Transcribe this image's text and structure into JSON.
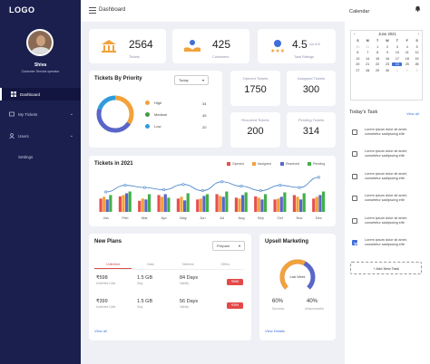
{
  "app": {
    "logo": "LOGO"
  },
  "user": {
    "name": "Shiva",
    "role": "Customer Service operator"
  },
  "nav": {
    "items": [
      {
        "label": "Dashboard",
        "icon": "dashboard-icon",
        "active": true
      },
      {
        "label": "My Tickets",
        "icon": "ticket-icon"
      },
      {
        "label": "Users",
        "icon": "user-icon"
      },
      {
        "label": "Settings",
        "icon": ""
      }
    ]
  },
  "header": {
    "title": "Dashboard"
  },
  "stats": [
    {
      "value": "2564",
      "label": "Tickets",
      "icon": "bank-icon"
    },
    {
      "value": "425",
      "label": "Customers",
      "icon": "hands-icon"
    },
    {
      "value": "4.5",
      "suffix": "out of 5",
      "label": "Total Ratings",
      "icon": "stars-icon"
    }
  ],
  "priority": {
    "title": "Tickets By Priority",
    "filter": "Today",
    "items": [
      {
        "label": "High",
        "value": 34,
        "color": "#f2a23a"
      },
      {
        "label": "Medium",
        "value": 45,
        "color": "#3f9b3f"
      },
      {
        "label": "Low",
        "value": 20,
        "color": "#2f9ddb"
      }
    ],
    "ring_color": "#5a66c8"
  },
  "ticket_counts": [
    {
      "label": "Opened Tickets",
      "value": "1750"
    },
    {
      "label": "Assigned Tickets",
      "value": "300"
    },
    {
      "label": "Resolved Tickets",
      "value": "200"
    },
    {
      "label": "Pending Tickets",
      "value": "314"
    }
  ],
  "chart_data": {
    "type": "bar",
    "title": "Tickets in 2021",
    "categories": [
      "Jan",
      "Feb",
      "Mar",
      "Apr",
      "May",
      "Jun",
      "Jul",
      "Aug",
      "Sep",
      "Oct",
      "Nov",
      "Dec"
    ],
    "series": [
      {
        "name": "Opened",
        "color": "#e84f4f",
        "values": [
          30,
          35,
          25,
          38,
          30,
          28,
          40,
          32,
          35,
          28,
          38,
          30
        ]
      },
      {
        "name": "Assigned",
        "color": "#f2a23a",
        "values": [
          34,
          38,
          30,
          34,
          34,
          30,
          36,
          30,
          32,
          30,
          34,
          34
        ]
      },
      {
        "name": "Resolved",
        "color": "#5a66c8",
        "values": [
          28,
          42,
          28,
          40,
          26,
          36,
          34,
          38,
          28,
          34,
          28,
          38
        ]
      },
      {
        "name": "Pending",
        "color": "#42b04a",
        "values": [
          38,
          46,
          40,
          32,
          42,
          40,
          46,
          44,
          40,
          44,
          42,
          46
        ]
      }
    ],
    "line": {
      "color": "#3f7fc8",
      "values": [
        45,
        60,
        55,
        50,
        62,
        48,
        68,
        58,
        48,
        60,
        55,
        78
      ]
    },
    "ylim": [
      0,
      90
    ]
  },
  "plans": {
    "title": "New Plans",
    "filter": "Prepaid",
    "tabs": [
      "Unlimited",
      "Data",
      "Talktime",
      "Offers"
    ],
    "rows": [
      {
        "price": "₹598",
        "price_sub": "Unlimited Calls",
        "data": "1.5 GB",
        "data_sub": "/Day",
        "days": "84 Days",
        "days_sub": "Validity",
        "btn": "₹598"
      },
      {
        "price": "₹399",
        "price_sub": "Unlimited Calls",
        "data": "1.5 GB",
        "data_sub": "/Day",
        "days": "56 Days",
        "days_sub": "Validity",
        "btn": "₹399"
      }
    ],
    "view_all": "View all"
  },
  "upsell": {
    "title": "Upsell Marketing",
    "gauge_label": "Last Week",
    "success_value": "60%",
    "success_label": "Success",
    "fail_value": "40%",
    "fail_label": "Unsuccessful",
    "success_fraction": 0.6,
    "success_color": "#f2a23a",
    "fail_color": "#5a66c8",
    "view_details": "View Details"
  },
  "calendar": {
    "title": "Calendar",
    "month": "June 2021",
    "days": [
      "S",
      "M",
      "T",
      "W",
      "T",
      "F",
      "S"
    ],
    "cells": [
      "30",
      "31",
      "1",
      "2",
      "3",
      "4",
      "5",
      "6",
      "7",
      "8",
      "9",
      "10",
      "11",
      "12",
      "13",
      "14",
      "15",
      "16",
      "17",
      "18",
      "19",
      "20",
      "21",
      "22",
      "23",
      "24",
      "25",
      "26",
      "27",
      "28",
      "29",
      "30",
      "1",
      "2",
      "3"
    ],
    "selected": "24"
  },
  "tasks": {
    "title": "Today's Task",
    "view_all": "View all",
    "items": [
      {
        "text": "Lorem ipsum dolor sit amet, consetetur sadipscing elitr",
        "done": false
      },
      {
        "text": "Lorem ipsum dolor sit amet, consetetur sadipscing elitr",
        "done": false
      },
      {
        "text": "Lorem ipsum dolor sit amet, consetetur sadipscing elitr",
        "done": false
      },
      {
        "text": "Lorem ipsum dolor sit amet, consetetur sadipscing elitr",
        "done": false
      },
      {
        "text": "Lorem ipsum dolor sit amet, consetetur sadipscing elitr",
        "done": false
      },
      {
        "text": "Lorem ipsum dolor sit amet, consetetur sadipscing elitr",
        "done": true
      }
    ],
    "add_label": "+ Add New Task"
  }
}
